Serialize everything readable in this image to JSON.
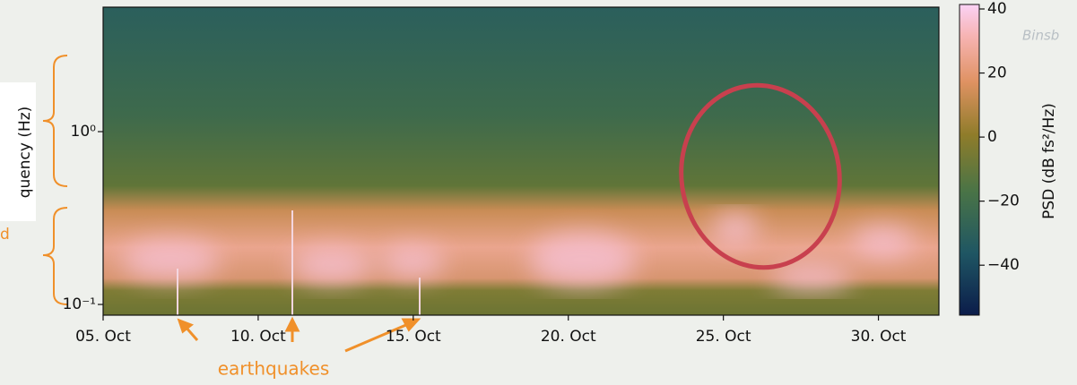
{
  "chart_data": {
    "type": "spectrogram",
    "ylabel": "quency (Hz)",
    "colorbar_label": "PSD (dB fs²/Hz)",
    "xlim": [
      5,
      31.95
    ],
    "xticks": [
      {
        "value": 5,
        "label": "05. Oct"
      },
      {
        "value": 10,
        "label": "10. Oct"
      },
      {
        "value": 15,
        "label": "15. Oct"
      },
      {
        "value": 20,
        "label": "20. Oct"
      },
      {
        "value": 25,
        "label": "25. Oct"
      },
      {
        "value": 30,
        "label": "30. Oct"
      }
    ],
    "ylim": [
      0.0867,
      5.25
    ],
    "yscale": "log",
    "yticks": [
      {
        "value": 0.1,
        "label": "10⁻¹"
      },
      {
        "value": 1,
        "label": "10⁰"
      }
    ],
    "clim": [
      -55.6,
      41.4
    ],
    "cticks": [
      {
        "value": -40,
        "label": "−40"
      },
      {
        "value": -20,
        "label": "−20"
      },
      0,
      20,
      40
    ],
    "annotation": "earthquakes",
    "side_text": "d",
    "map_label": "Binsb"
  }
}
